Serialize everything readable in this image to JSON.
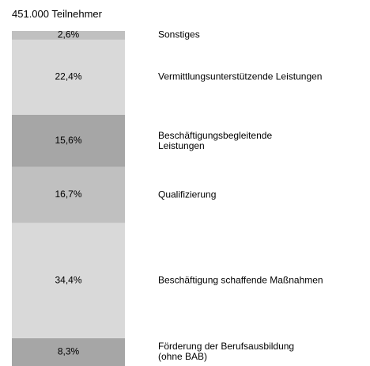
{
  "chart_data": {
    "type": "bar",
    "stacked": true,
    "title": "451.000 Teilnehmer",
    "ylim": [
      0,
      100
    ],
    "series": [
      {
        "name": "Förderung der Berufsausbildung\n(ohne BAB)",
        "color": "#a6a6a6",
        "values": [
          8.3
        ],
        "value_labels": [
          "8,3%"
        ]
      },
      {
        "name": "Beschäftigung schaffende Maßnahmen",
        "color": "#d9d9d9",
        "values": [
          34.4
        ],
        "value_labels": [
          "34,4%"
        ]
      },
      {
        "name": "Qualifizierung",
        "color": "#c0c0c0",
        "values": [
          16.7
        ],
        "value_labels": [
          "16,7%"
        ]
      },
      {
        "name": "Beschäftigungsbegleitende\nLeistungen",
        "color": "#a6a6a6",
        "values": [
          15.6
        ],
        "value_labels": [
          "15,6%"
        ]
      },
      {
        "name": "Vermittlungsunterstützende Leistungen",
        "color": "#d9d9d9",
        "values": [
          22.4
        ],
        "value_labels": [
          "22,4%"
        ]
      },
      {
        "name": "Sonstiges",
        "color": "#c0c0c0",
        "values": [
          2.6
        ],
        "value_labels": [
          "2,6%"
        ]
      }
    ]
  }
}
